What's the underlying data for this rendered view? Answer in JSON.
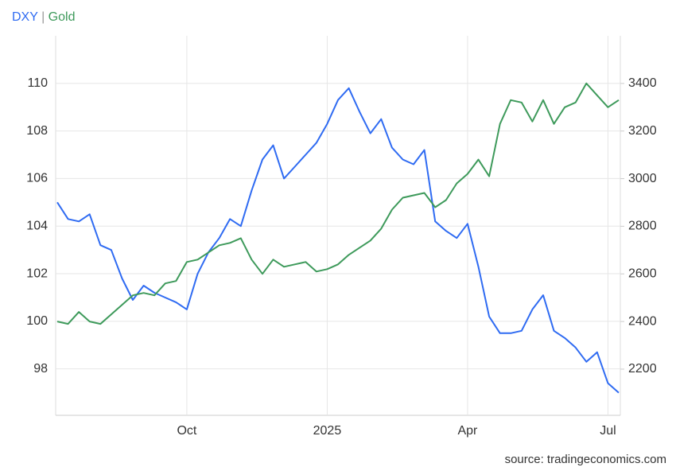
{
  "chart_data": {
    "type": "line",
    "legend": {
      "first": "DXY",
      "separator": "|",
      "second": "Gold"
    },
    "source": "source: tradingeconomics.com",
    "categories": [
      null,
      null,
      null,
      null,
      null,
      null,
      null,
      null,
      null,
      null,
      null,
      null,
      "Oct",
      null,
      null,
      null,
      null,
      null,
      null,
      null,
      null,
      null,
      null,
      null,
      null,
      "2025",
      null,
      null,
      null,
      null,
      null,
      null,
      null,
      null,
      null,
      null,
      null,
      null,
      "Apr",
      null,
      null,
      null,
      null,
      null,
      null,
      null,
      null,
      null,
      null,
      null,
      null,
      "Jul",
      null
    ],
    "series": [
      {
        "name": "DXY",
        "color": "#2f6bf2",
        "axis": "y",
        "values": [
          105.0,
          104.3,
          104.2,
          104.5,
          103.2,
          103.0,
          101.8,
          100.9,
          101.5,
          101.2,
          101.0,
          100.8,
          100.5,
          102.0,
          102.9,
          103.5,
          104.3,
          104.0,
          105.5,
          106.8,
          107.4,
          106.0,
          106.5,
          107.0,
          107.5,
          108.3,
          109.3,
          109.8,
          108.8,
          107.9,
          108.5,
          107.3,
          106.8,
          106.6,
          107.2,
          104.2,
          103.8,
          103.5,
          104.1,
          102.3,
          100.2,
          99.5,
          99.5,
          99.6,
          100.5,
          101.1,
          99.6,
          99.3,
          98.9,
          98.3,
          98.7,
          97.4,
          97.0
        ]
      },
      {
        "name": "Gold",
        "color": "#3e9a5b",
        "axis": "y2",
        "values": [
          2400,
          2390,
          2440,
          2400,
          2390,
          2430,
          2470,
          2510,
          2520,
          2510,
          2560,
          2570,
          2650,
          2660,
          2690,
          2720,
          2730,
          2750,
          2660,
          2600,
          2660,
          2630,
          2640,
          2650,
          2610,
          2620,
          2640,
          2680,
          2710,
          2740,
          2790,
          2870,
          2920,
          2930,
          2940,
          2880,
          2910,
          2980,
          3020,
          3080,
          3010,
          3230,
          3330,
          3320,
          3240,
          3330,
          3230,
          3300,
          3320,
          3400,
          3350,
          3300,
          3330
        ]
      }
    ],
    "ylim": [
      96.05,
      112
    ],
    "yticks": [
      98,
      100,
      102,
      104,
      106,
      108,
      110
    ],
    "y2lim": [
      2006,
      3600
    ],
    "y2ticks": [
      2200,
      2400,
      2600,
      2800,
      3000,
      3200,
      3400
    ],
    "grid": true
  }
}
